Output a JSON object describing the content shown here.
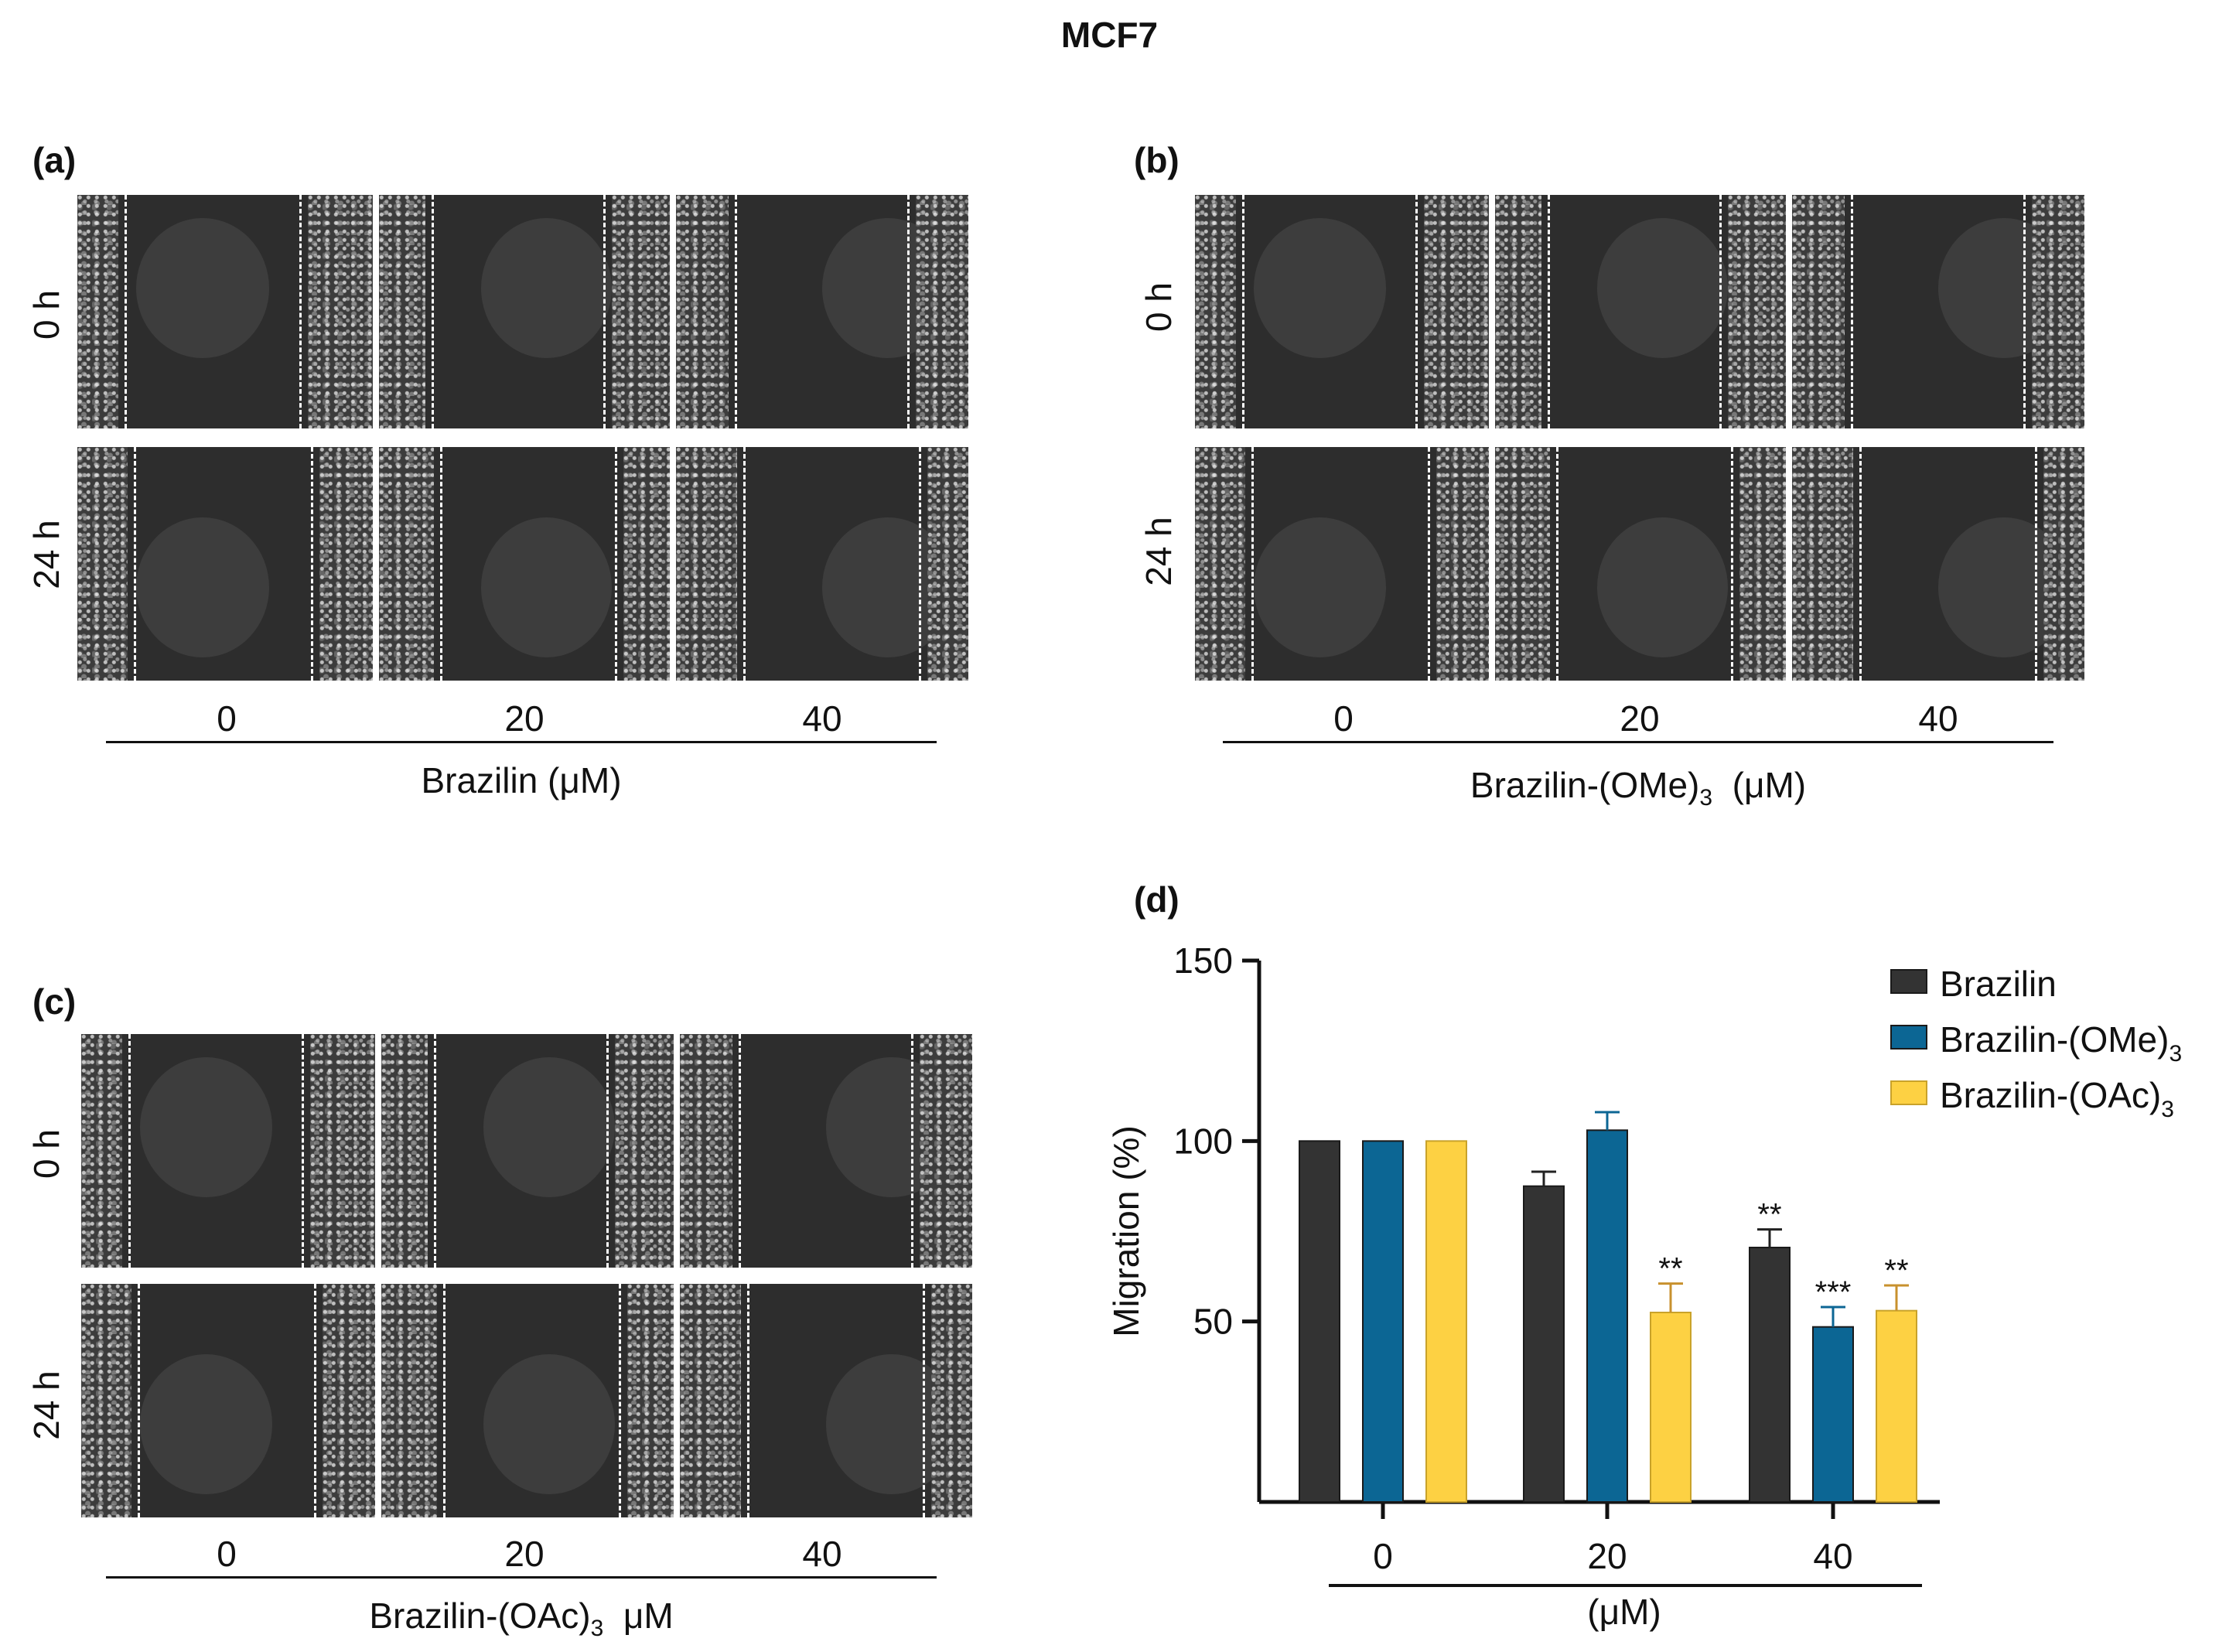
{
  "figure_title": "MCF7",
  "panels": {
    "a": {
      "label": "(a)",
      "rows": [
        "0 h",
        "24 h"
      ],
      "concentrations": [
        "0",
        "20",
        "40"
      ],
      "xlabel": "Brazilin  (μM)"
    },
    "b": {
      "label": "(b)",
      "rows": [
        "0 h",
        "24 h"
      ],
      "concentrations": [
        "0",
        "20",
        "40"
      ],
      "xlabel_base": "Brazilin-(OMe)",
      "xlabel_sub": "3",
      "xlabel_tail": "  (μM)"
    },
    "c": {
      "label": "(c)",
      "rows": [
        "0 h",
        "24 h"
      ],
      "concentrations": [
        "0",
        "20",
        "40"
      ],
      "xlabel_base": "Brazilin-(OAc)",
      "xlabel_sub": "3",
      "xlabel_tail": "  μM"
    },
    "d": {
      "label": "(d)"
    }
  },
  "chart_data": {
    "type": "bar",
    "title": "",
    "categories": [
      "0",
      "20",
      "40"
    ],
    "xlabel": "(μM)",
    "ylabel": "Migration (%)",
    "ylim": [
      0,
      150
    ],
    "yticks": [
      50,
      100,
      150
    ],
    "series": [
      {
        "name": "Brazilin",
        "name_sub": "",
        "color": "#333333",
        "values": [
          100,
          87.5,
          70.5
        ],
        "errors": [
          0,
          4,
          5
        ],
        "significance": [
          "",
          "",
          "**"
        ]
      },
      {
        "name": "Brazilin-(OMe)",
        "name_sub": "3",
        "color": "#0c6694",
        "values": [
          100,
          103,
          48.5
        ],
        "errors": [
          0,
          5,
          5.5
        ],
        "significance": [
          "",
          "",
          "***"
        ]
      },
      {
        "name": "Brazilin-(OAc)",
        "name_sub": "3",
        "color": "#fdd143",
        "values": [
          100,
          52.5,
          53
        ],
        "errors": [
          0,
          8,
          7
        ],
        "significance": [
          "",
          "**",
          "**"
        ]
      }
    ],
    "legend_position": "top-right"
  }
}
